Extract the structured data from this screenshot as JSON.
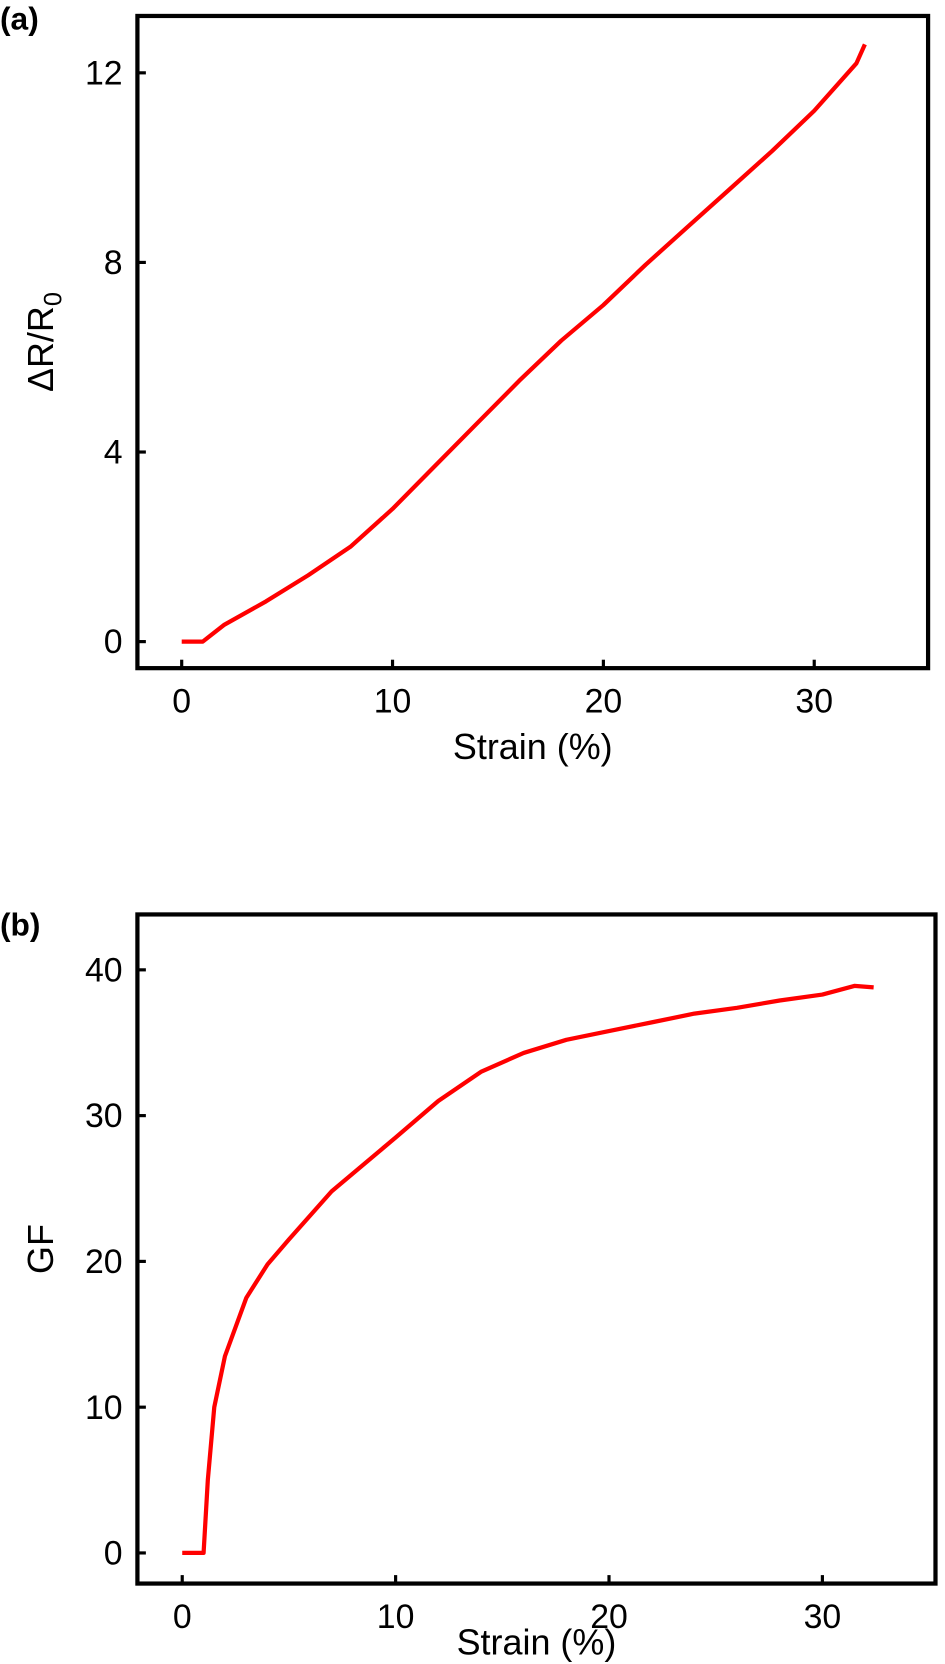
{
  "chart_data": [
    {
      "panel": "(a)",
      "type": "line",
      "xlabel": "Strain (%)",
      "ylabel_main": "ΔR/R",
      "ylabel_sub": "0",
      "xlim": [
        -2.1,
        35.4
      ],
      "ylim": [
        -0.56,
        13.2
      ],
      "xticks": [
        0,
        10,
        20,
        30
      ],
      "yticks": [
        0,
        4,
        8,
        12
      ],
      "grid": false,
      "color": "#ff0000",
      "series": [
        {
          "name": "ΔR/R0",
          "x": [
            0,
            1,
            2,
            4,
            6,
            8,
            10,
            12,
            14,
            16,
            18,
            20,
            22,
            24,
            26,
            28,
            30,
            32,
            32.4
          ],
          "y": [
            0,
            0,
            0.35,
            0.85,
            1.4,
            2.0,
            2.8,
            3.7,
            4.6,
            5.5,
            6.35,
            7.1,
            7.95,
            8.75,
            9.55,
            10.35,
            11.2,
            12.2,
            12.6
          ]
        }
      ]
    },
    {
      "panel": "(b)",
      "type": "line",
      "xlabel": "Strain (%)",
      "ylabel_main": "GF",
      "ylabel_sub": "",
      "xlim": [
        -2.1,
        35.3
      ],
      "ylim": [
        -2.1,
        43.8
      ],
      "xticks": [
        0,
        10,
        20,
        30
      ],
      "yticks": [
        0,
        10,
        20,
        30,
        40
      ],
      "grid": false,
      "color": "#ff0000",
      "series": [
        {
          "name": "GF",
          "x": [
            0,
            1,
            1.2,
            1.5,
            2,
            3,
            4,
            5,
            7,
            10,
            12,
            14,
            16,
            18,
            20,
            22,
            24,
            26,
            28,
            30,
            31.5,
            32.4
          ],
          "y": [
            0,
            0,
            5,
            10,
            13.5,
            17.5,
            19.8,
            21.5,
            24.8,
            28.5,
            31,
            33,
            34.3,
            35.2,
            35.8,
            36.4,
            37,
            37.4,
            37.9,
            38.3,
            38.9,
            38.8
          ]
        }
      ]
    }
  ]
}
